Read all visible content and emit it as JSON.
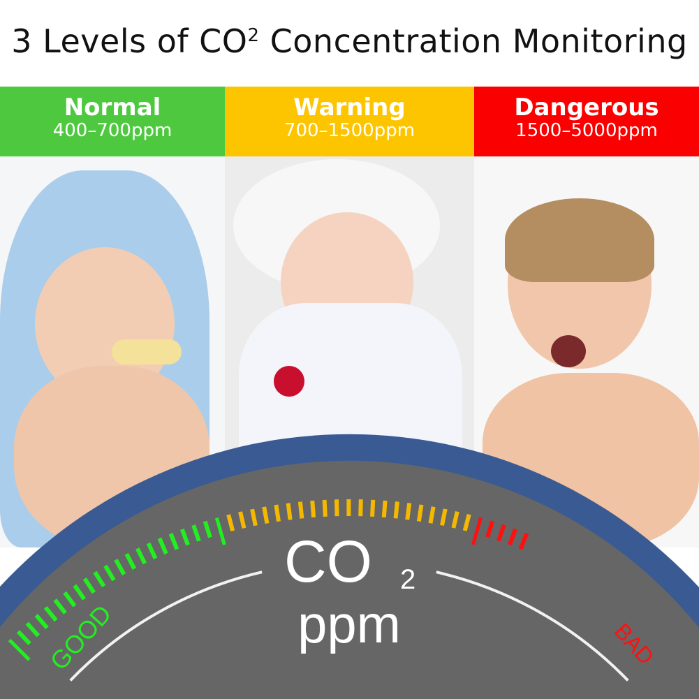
{
  "title": {
    "text": "3 Levels of CO",
    "sup": "2",
    "rest": " Concentration Monitoring"
  },
  "levels": [
    {
      "label": "Normal",
      "range": "400–700ppm",
      "color": "#4ec93f"
    },
    {
      "label": "Warning",
      "range": "700–1500ppm",
      "color": "#fdc400"
    },
    {
      "label": "Dangerous",
      "range": "1500–5000ppm",
      "color": "#fb0000"
    }
  ],
  "photos": [
    "happy baby with blue towel",
    "calm baby in white hat",
    "crying toddler"
  ],
  "gauge": {
    "co2_label": "CO",
    "co2_sub": "2",
    "unit": "ppm",
    "good_label": "GOOD",
    "bad_label": "BAD",
    "colors": {
      "rim": "#3a5a93",
      "face": "#666666",
      "good": "#22ee22",
      "warn": "#f5b800",
      "bad": "#ff1010"
    }
  }
}
